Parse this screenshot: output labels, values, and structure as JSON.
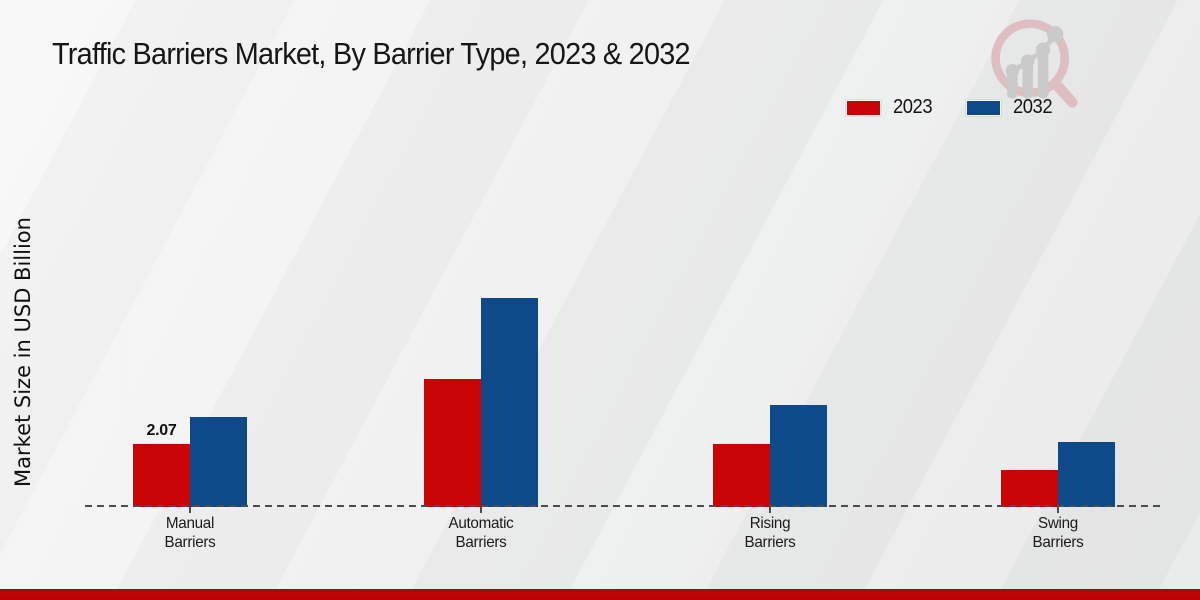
{
  "page": {
    "title": "Traffic Barriers Market, By Barrier Type, 2023 & 2032",
    "ylabel": "Market Size in USD Billion"
  },
  "legend": {
    "items": [
      {
        "label": "2023",
        "color": "#c80404"
      },
      {
        "label": "2032",
        "color": "#0e4a89"
      }
    ]
  },
  "branding": {
    "logo": "magnifier-growth-chart-logo",
    "logo_ring_color": "#debabd",
    "logo_bar_color": "#c7c7c7"
  },
  "colors": {
    "series_2023": "#c80404",
    "series_2032": "#0e4a89",
    "baseline": "#4c4c4c",
    "bottom_band": "#c00404"
  },
  "chart_data": {
    "type": "bar",
    "title": "Traffic Barriers Market, By Barrier Type, 2023 & 2032",
    "xlabel": "",
    "ylabel": "Market Size in USD Billion",
    "categories": [
      "Manual Barriers",
      "Automatic Barriers",
      "Rising Barriers",
      "Swing Barriers"
    ],
    "series": [
      {
        "name": "2023",
        "color": "#c80404",
        "values": [
          2.07,
          4.21,
          2.07,
          1.22
        ]
      },
      {
        "name": "2032",
        "color": "#0e4a89",
        "values": [
          2.96,
          6.87,
          3.35,
          2.14
        ]
      }
    ],
    "data_labels": [
      {
        "series": "2023",
        "category": "Manual Barriers",
        "text": "2.07"
      }
    ],
    "ylim": [
      0,
      7.5
    ],
    "grid": false,
    "axis_style": "dashed-baseline-only",
    "legend_position": "top-right"
  }
}
